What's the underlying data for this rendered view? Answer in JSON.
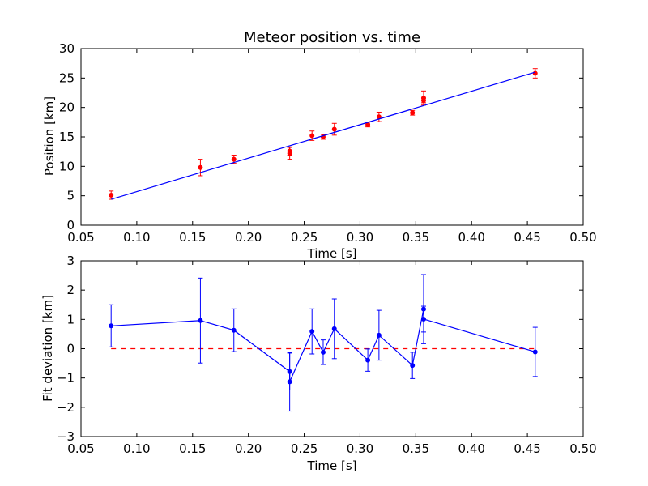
{
  "chart_data": [
    {
      "type": "scatter",
      "title": "Meteor position vs. time",
      "xlabel": "Time [s]",
      "ylabel": "Position [km]",
      "xlim": [
        0.05,
        0.5
      ],
      "ylim": [
        0,
        30
      ],
      "xticks": [
        "0.05",
        "0.10",
        "0.15",
        "0.20",
        "0.25",
        "0.30",
        "0.35",
        "0.40",
        "0.45",
        "0.50"
      ],
      "yticks": [
        "0",
        "5",
        "10",
        "15",
        "20",
        "25",
        "30"
      ],
      "grid": false,
      "series": [
        {
          "kind": "errorbar",
          "color": "#ff0000",
          "points": [
            {
              "x": 0.077,
              "y": 5.1,
              "err": 0.7
            },
            {
              "x": 0.157,
              "y": 9.8,
              "err": 1.4
            },
            {
              "x": 0.187,
              "y": 11.2,
              "err": 0.7
            },
            {
              "x": 0.237,
              "y": 12.6,
              "err": 0.7
            },
            {
              "x": 0.237,
              "y": 12.2,
              "err": 1.0
            },
            {
              "x": 0.257,
              "y": 15.2,
              "err": 0.8
            },
            {
              "x": 0.267,
              "y": 15.0,
              "err": 0.4
            },
            {
              "x": 0.277,
              "y": 16.3,
              "err": 1.0
            },
            {
              "x": 0.307,
              "y": 17.1,
              "err": 0.4
            },
            {
              "x": 0.317,
              "y": 18.4,
              "err": 0.8
            },
            {
              "x": 0.347,
              "y": 19.1,
              "err": 0.4
            },
            {
              "x": 0.357,
              "y": 21.6,
              "err": 1.2
            },
            {
              "x": 0.357,
              "y": 21.2,
              "err": 0.4
            },
            {
              "x": 0.457,
              "y": 25.8,
              "err": 0.8
            }
          ]
        },
        {
          "kind": "line",
          "color": "#0000ff",
          "points": [
            {
              "x": 0.077,
              "y": 4.4
            },
            {
              "x": 0.457,
              "y": 26.0
            }
          ]
        }
      ]
    },
    {
      "type": "line",
      "title": "",
      "xlabel": "Time [s]",
      "ylabel": "Fit deviation [km]",
      "xlim": [
        0.05,
        0.5
      ],
      "ylim": [
        -3,
        3
      ],
      "xticks": [
        "0.05",
        "0.10",
        "0.15",
        "0.20",
        "0.25",
        "0.30",
        "0.35",
        "0.40",
        "0.45",
        "0.50"
      ],
      "yticks": [
        "−3",
        "−2",
        "−1",
        "0",
        "1",
        "2",
        "3"
      ],
      "grid": false,
      "reference_line": {
        "y": 0,
        "color": "#ff0000",
        "style": "dashed"
      },
      "series": [
        {
          "kind": "errorbar-line",
          "color": "#0000ff",
          "points": [
            {
              "x": 0.077,
              "y": 0.78,
              "err": 0.72
            },
            {
              "x": 0.157,
              "y": 0.96,
              "err": 1.45
            },
            {
              "x": 0.187,
              "y": 0.63,
              "err": 0.73
            },
            {
              "x": 0.237,
              "y": -0.78,
              "err": 0.63
            },
            {
              "x": 0.237,
              "y": -1.13,
              "err": 1.0
            },
            {
              "x": 0.257,
              "y": 0.59,
              "err": 0.77
            },
            {
              "x": 0.267,
              "y": -0.12,
              "err": 0.42
            },
            {
              "x": 0.277,
              "y": 0.68,
              "err": 1.02
            },
            {
              "x": 0.307,
              "y": -0.39,
              "err": 0.38
            },
            {
              "x": 0.317,
              "y": 0.46,
              "err": 0.85
            },
            {
              "x": 0.347,
              "y": -0.57,
              "err": 0.45
            },
            {
              "x": 0.357,
              "y": 1.35,
              "err": 1.18
            },
            {
              "x": 0.357,
              "y": 1.01,
              "err": 0.44
            },
            {
              "x": 0.457,
              "y": -0.11,
              "err": 0.84
            }
          ]
        }
      ]
    }
  ]
}
